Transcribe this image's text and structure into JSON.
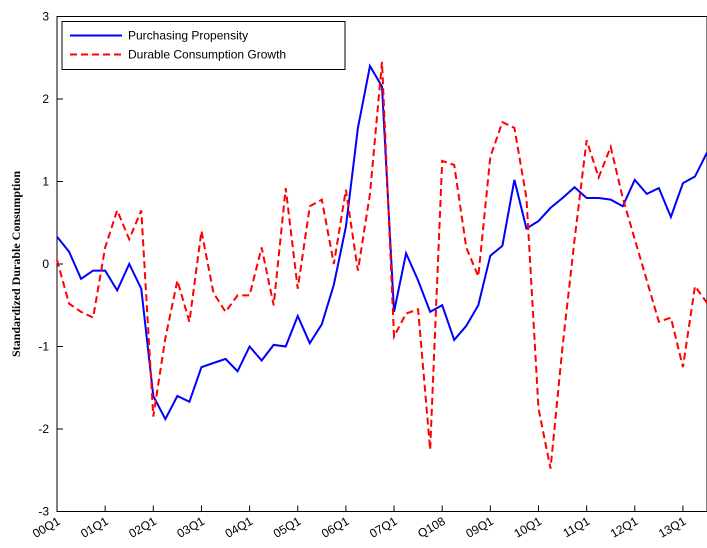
{
  "chart_data": {
    "type": "line",
    "ylabel": "Standardized Durable Consumption",
    "categories": [
      "00Q1",
      null,
      null,
      null,
      "01Q1",
      null,
      null,
      null,
      "02Q1",
      null,
      null,
      null,
      "03Q1",
      null,
      null,
      null,
      "04Q1",
      null,
      null,
      null,
      "05Q1",
      null,
      null,
      null,
      "06Q1",
      null,
      null,
      null,
      "07Q1",
      null,
      null,
      null,
      "Q108",
      null,
      null,
      null,
      "09Q1",
      null,
      null,
      null,
      "10Q1",
      null,
      null,
      null,
      "11Q1",
      null,
      null,
      null,
      "12Q1",
      null,
      null,
      null,
      "13Q1",
      null,
      null
    ],
    "series": [
      {
        "name": "Purchasing Propensity",
        "color": "#0000ff",
        "dash": false,
        "values": [
          0.33,
          0.15,
          -0.18,
          -0.08,
          -0.08,
          -0.32,
          0.0,
          -0.3,
          -1.6,
          -1.88,
          -1.6,
          -1.67,
          -1.25,
          -1.2,
          -1.15,
          -1.3,
          -1.0,
          -1.17,
          -0.98,
          -1.0,
          -0.63,
          -0.96,
          -0.73,
          -0.25,
          0.45,
          1.65,
          2.4,
          2.15,
          -0.58,
          0.13,
          -0.2,
          -0.58,
          -0.5,
          -0.92,
          -0.75,
          -0.5,
          0.1,
          0.22,
          1.02,
          0.43,
          0.52,
          0.68,
          0.8,
          0.93,
          0.8,
          0.8,
          0.78,
          0.7,
          1.02,
          0.85,
          0.92,
          0.57,
          0.98,
          1.06,
          1.35
        ]
      },
      {
        "name": "Durable Consumption Growth",
        "color": "#ff0000",
        "dash": true,
        "values": [
          0.05,
          -0.48,
          -0.58,
          -0.65,
          0.2,
          0.65,
          0.3,
          0.65,
          -1.85,
          -0.9,
          -0.2,
          -0.7,
          0.4,
          -0.35,
          -0.58,
          -0.38,
          -0.38,
          0.2,
          -0.5,
          0.92,
          -0.3,
          0.7,
          0.78,
          0.0,
          0.9,
          -0.08,
          0.85,
          2.45,
          -0.88,
          -0.6,
          -0.55,
          -2.25,
          1.25,
          1.2,
          0.2,
          -0.15,
          1.3,
          1.72,
          1.65,
          0.8,
          -1.75,
          -2.48,
          -1.0,
          0.3,
          1.5,
          1.05,
          1.42,
          0.8,
          0.3,
          -0.2,
          -0.7,
          -0.65,
          -1.25,
          -0.27,
          -0.47
        ]
      }
    ],
    "ylim": [
      -3,
      3
    ],
    "yticks": [
      -3,
      -2,
      -1,
      0,
      1,
      2,
      3
    ],
    "legend": "upper left"
  }
}
